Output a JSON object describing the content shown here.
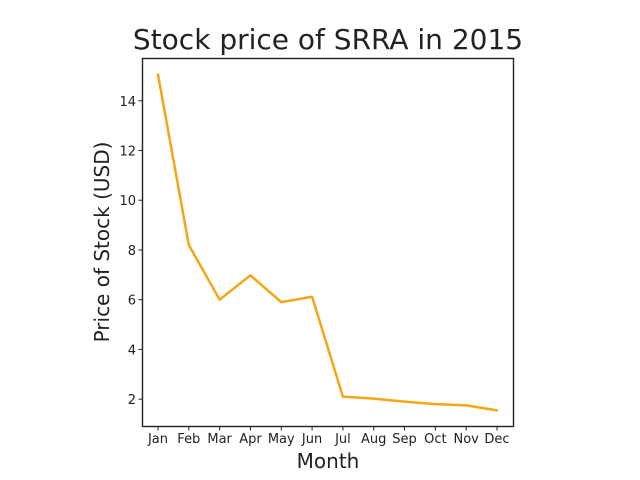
{
  "chart_data": {
    "type": "line",
    "title": "Stock price of SRRA in 2015",
    "xlabel": "Month",
    "ylabel": "Price of Stock (USD)",
    "categories": [
      "Jan",
      "Feb",
      "Mar",
      "Apr",
      "May",
      "Jun",
      "Jul",
      "Aug",
      "Sep",
      "Oct",
      "Nov",
      "Dec"
    ],
    "yticks": [
      2,
      4,
      6,
      8,
      10,
      12,
      14
    ],
    "ylim": [
      0.9,
      15.7
    ],
    "grid": false,
    "series": [
      {
        "values": [
          15.05,
          8.2,
          6.0,
          6.98,
          5.9,
          6.12,
          2.1,
          2.02,
          1.9,
          1.8,
          1.75,
          1.55
        ],
        "color": "#f5a614"
      }
    ]
  }
}
